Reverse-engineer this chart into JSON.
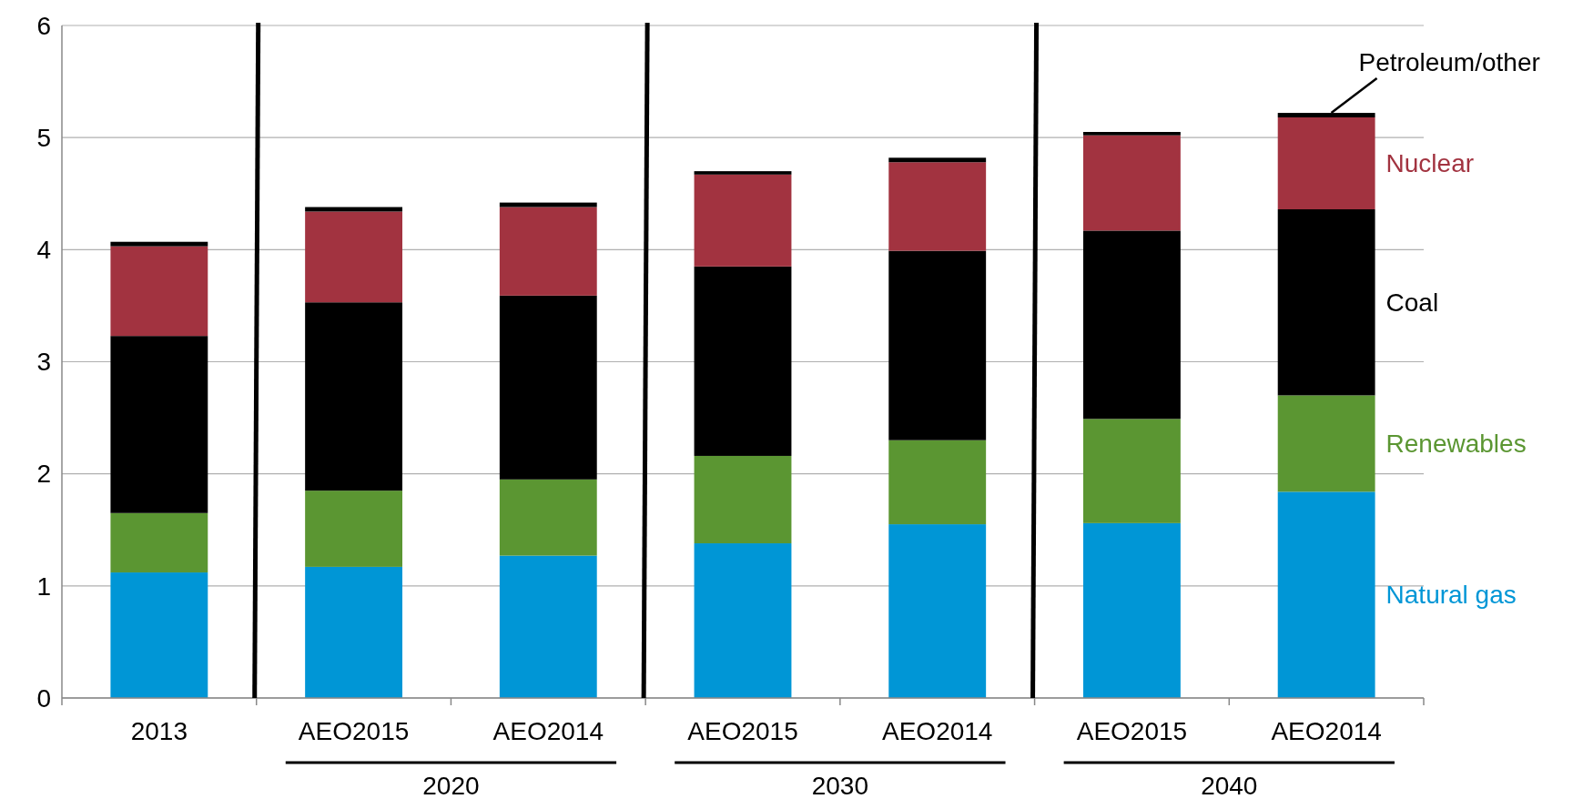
{
  "chart_data": {
    "type": "bar",
    "stacked": true,
    "categories": [
      "2013",
      "AEO2015",
      "AEO2014",
      "AEO2015",
      "AEO2014",
      "AEO2015",
      "AEO2014"
    ],
    "series": [
      {
        "name": "Natural gas",
        "color": "#0096d6",
        "values": [
          1.12,
          1.17,
          1.27,
          1.38,
          1.55,
          1.56,
          1.84
        ]
      },
      {
        "name": "Renewables",
        "color": "#5b9632",
        "values": [
          0.53,
          0.68,
          0.68,
          0.78,
          0.75,
          0.93,
          0.86
        ]
      },
      {
        "name": "Coal",
        "color": "#000000",
        "values": [
          1.58,
          1.68,
          1.64,
          1.69,
          1.69,
          1.68,
          1.66
        ]
      },
      {
        "name": "Nuclear",
        "color": "#a23340",
        "values": [
          0.8,
          0.81,
          0.79,
          0.82,
          0.79,
          0.85,
          0.82
        ]
      },
      {
        "name": "Petroleum/other",
        "color": "#000000",
        "values": [
          0.04,
          0.04,
          0.04,
          0.03,
          0.04,
          0.03,
          0.04
        ]
      }
    ],
    "annotations": [
      "2020",
      "2030",
      "2040"
    ],
    "ylim": [
      0,
      6
    ],
    "yticks": [
      0,
      1,
      2,
      3,
      4,
      5,
      6
    ],
    "grid": "y",
    "legend": "right"
  }
}
